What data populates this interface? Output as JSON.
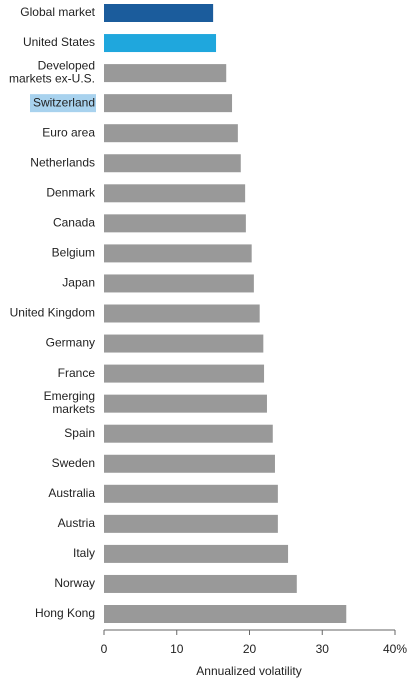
{
  "chart_data": {
    "type": "hbar",
    "x_label": "Annualized volatility",
    "categories": [
      "Global market",
      "United States",
      "Developed\nmarkets ex-U.S.",
      "Switzerland",
      "Euro area",
      "Netherlands",
      "Denmark",
      "Canada",
      "Belgium",
      "Japan",
      "United Kingdom",
      "Germany",
      "France",
      "Emerging\nmarkets",
      "Spain",
      "Sweden",
      "Australia",
      "Austria",
      "Italy",
      "Norway",
      "Hong Kong"
    ],
    "values": [
      15.0,
      15.4,
      16.8,
      17.6,
      18.4,
      18.8,
      19.4,
      19.5,
      20.3,
      20.6,
      21.4,
      21.9,
      22.0,
      22.4,
      23.2,
      23.5,
      23.9,
      23.9,
      25.3,
      26.5,
      33.3
    ],
    "colors": [
      "#1b5c9c",
      "#1fa7dd",
      "#999999",
      "#999999",
      "#999999",
      "#999999",
      "#999999",
      "#999999",
      "#999999",
      "#999999",
      "#999999",
      "#999999",
      "#999999",
      "#999999",
      "#999999",
      "#999999",
      "#999999",
      "#999999",
      "#999999",
      "#999999",
      "#999999"
    ],
    "label_highlight": {
      "index": 3,
      "color": "#a8d2ee"
    },
    "xlim": [
      0,
      40
    ],
    "xticks": [
      0,
      10,
      20,
      30,
      {
        "value": 40,
        "label": "40%"
      }
    ]
  }
}
